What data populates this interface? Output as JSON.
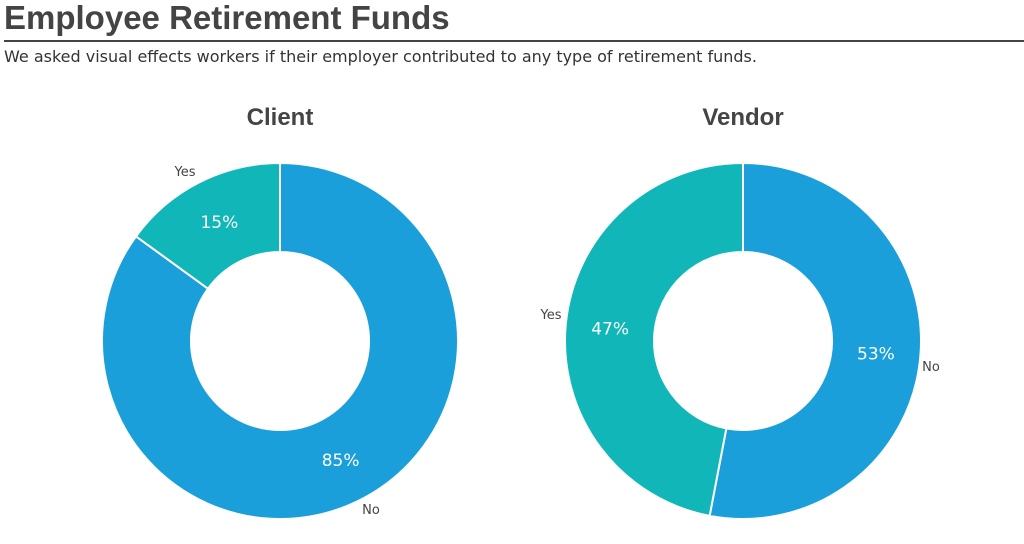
{
  "page": {
    "title": "Employee Retirement Funds",
    "subtitle": "We asked visual effects workers if their employer contributed to any type of retirement funds."
  },
  "colors": {
    "No": "#1a9fda",
    "Yes": "#11b6b8"
  },
  "chart_data": [
    {
      "type": "pie",
      "title": "Client",
      "hole": 0.5,
      "slices": [
        {
          "label": "No",
          "value": 85,
          "value_label": "85%"
        },
        {
          "label": "Yes",
          "value": 15,
          "value_label": "15%"
        }
      ]
    },
    {
      "type": "pie",
      "title": "Vendor",
      "hole": 0.5,
      "slices": [
        {
          "label": "No",
          "value": 53,
          "value_label": "53%"
        },
        {
          "label": "Yes",
          "value": 47,
          "value_label": "47%"
        }
      ]
    }
  ]
}
